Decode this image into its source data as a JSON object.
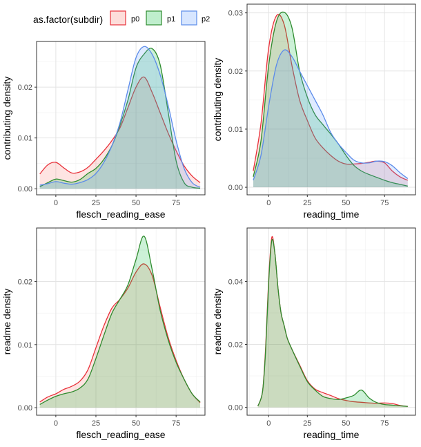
{
  "legend": {
    "title": "as.factor(subdir)",
    "items": [
      {
        "label": "p0",
        "stroke": "#E8313A",
        "fill": "#F8766D"
      },
      {
        "label": "p1",
        "stroke": "#2E8B2E",
        "fill": "#00BA38"
      },
      {
        "label": "p2",
        "stroke": "#5B8BEA",
        "fill": "#619CFF"
      }
    ],
    "placement": "top-left"
  },
  "chart_data": [
    {
      "type": "area",
      "xlabel": "flesch_reading_ease",
      "ylabel": "contributing density",
      "xlim": [
        -12,
        93
      ],
      "ylim": [
        -0.0012,
        0.029
      ],
      "xticks": [
        0,
        25,
        50,
        75
      ],
      "yticks": [
        0.0,
        0.01,
        0.02
      ],
      "ytick_labels": [
        "0.00",
        "0.01",
        "0.02"
      ],
      "grid": true,
      "series": [
        {
          "name": "p0",
          "x": [
            -10,
            -5,
            0,
            5,
            10,
            15,
            20,
            25,
            30,
            35,
            40,
            45,
            50,
            55,
            60,
            65,
            70,
            75,
            80,
            85,
            90
          ],
          "y": [
            0.0029,
            0.0047,
            0.0052,
            0.0041,
            0.0031,
            0.0033,
            0.0042,
            0.0058,
            0.0075,
            0.0095,
            0.012,
            0.016,
            0.02,
            0.022,
            0.019,
            0.015,
            0.011,
            0.0075,
            0.0045,
            0.0025,
            0.0012
          ]
        },
        {
          "name": "p1",
          "x": [
            -10,
            -5,
            0,
            5,
            10,
            15,
            20,
            25,
            30,
            35,
            40,
            45,
            50,
            55,
            60,
            65,
            70,
            75,
            80,
            85,
            90
          ],
          "y": [
            0.0004,
            0.0012,
            0.0019,
            0.0016,
            0.0013,
            0.0018,
            0.003,
            0.004,
            0.0058,
            0.0085,
            0.0125,
            0.0175,
            0.0238,
            0.0265,
            0.0276,
            0.0245,
            0.0152,
            0.0055,
            0.0012,
            0.0003,
            0.0001
          ]
        },
        {
          "name": "p2",
          "x": [
            -10,
            -5,
            0,
            5,
            10,
            15,
            20,
            25,
            30,
            35,
            40,
            45,
            50,
            55,
            60,
            65,
            70,
            75,
            80,
            85,
            90
          ],
          "y": [
            0.0007,
            0.001,
            0.0014,
            0.0011,
            0.0009,
            0.0012,
            0.0018,
            0.003,
            0.0052,
            0.0085,
            0.013,
            0.0195,
            0.0258,
            0.028,
            0.0265,
            0.0225,
            0.0165,
            0.0095,
            0.004,
            0.0012,
            0.0003
          ]
        }
      ]
    },
    {
      "type": "area",
      "xlabel": "reading_time",
      "ylabel": "contributing density",
      "xlim": [
        -14,
        95
      ],
      "ylim": [
        -0.0013,
        0.0315
      ],
      "xticks": [
        0,
        25,
        50,
        75
      ],
      "yticks": [
        0.0,
        0.01,
        0.02,
        0.03
      ],
      "ytick_labels": [
        "0.00",
        "0.01",
        "0.02",
        "0.03"
      ],
      "grid": true,
      "series": [
        {
          "name": "p0",
          "x": [
            -10,
            -5,
            0,
            5,
            10,
            15,
            20,
            25,
            30,
            35,
            40,
            45,
            50,
            55,
            60,
            65,
            70,
            75,
            80,
            85,
            90
          ],
          "y": [
            0.0028,
            0.011,
            0.024,
            0.0295,
            0.028,
            0.021,
            0.015,
            0.0115,
            0.0085,
            0.0068,
            0.0055,
            0.0045,
            0.004,
            0.004,
            0.0041,
            0.0043,
            0.0045,
            0.0042,
            0.0028,
            0.0018,
            0.0012
          ]
        },
        {
          "name": "p1",
          "x": [
            -10,
            -5,
            0,
            5,
            10,
            15,
            20,
            25,
            30,
            35,
            40,
            45,
            50,
            55,
            60,
            65,
            70,
            75,
            80,
            85,
            90
          ],
          "y": [
            0.0018,
            0.008,
            0.021,
            0.0285,
            0.0301,
            0.0275,
            0.02,
            0.0155,
            0.0125,
            0.0108,
            0.0092,
            0.0075,
            0.0055,
            0.0038,
            0.0028,
            0.0022,
            0.0017,
            0.0012,
            0.0008,
            0.0005,
            0.0002
          ]
        },
        {
          "name": "p2",
          "x": [
            -10,
            -5,
            0,
            5,
            10,
            15,
            20,
            25,
            30,
            35,
            40,
            45,
            50,
            55,
            60,
            65,
            70,
            75,
            80,
            85,
            90
          ],
          "y": [
            0.0012,
            0.0055,
            0.014,
            0.021,
            0.0236,
            0.0225,
            0.02,
            0.0175,
            0.015,
            0.0125,
            0.0095,
            0.0075,
            0.006,
            0.0047,
            0.0042,
            0.0042,
            0.0045,
            0.0044,
            0.0037,
            0.0025,
            0.0015
          ]
        }
      ]
    },
    {
      "type": "area",
      "xlabel": "flesch_reading_ease",
      "ylabel": "readme density",
      "xlim": [
        -12,
        93
      ],
      "ylim": [
        -0.0012,
        0.0285
      ],
      "xticks": [
        0,
        25,
        50,
        75
      ],
      "yticks": [
        0.0,
        0.01,
        0.02
      ],
      "ytick_labels": [
        "0.00",
        "0.01",
        "0.02"
      ],
      "grid": true,
      "series": [
        {
          "name": "p0",
          "x": [
            -10,
            -5,
            0,
            5,
            10,
            15,
            20,
            25,
            30,
            35,
            40,
            45,
            50,
            55,
            60,
            65,
            70,
            75,
            80,
            85,
            90
          ],
          "y": [
            0.0009,
            0.0017,
            0.0022,
            0.0029,
            0.0034,
            0.0042,
            0.006,
            0.0095,
            0.013,
            0.0158,
            0.0172,
            0.019,
            0.0215,
            0.0228,
            0.021,
            0.016,
            0.0112,
            0.0075,
            0.0045,
            0.0022,
            0.0008
          ]
        },
        {
          "name": "p1",
          "x": [
            -10,
            -5,
            0,
            5,
            10,
            15,
            20,
            25,
            30,
            35,
            40,
            45,
            50,
            55,
            60,
            65,
            70,
            75,
            80,
            85,
            90
          ],
          "y": [
            0.0005,
            0.0012,
            0.0018,
            0.0022,
            0.0025,
            0.0031,
            0.0045,
            0.0078,
            0.0115,
            0.015,
            0.0172,
            0.0195,
            0.0235,
            0.0272,
            0.022,
            0.0155,
            0.0108,
            0.0072,
            0.0045,
            0.0022,
            0.0009
          ]
        }
      ]
    },
    {
      "type": "area",
      "xlabel": "reading_time",
      "ylabel": "readme density",
      "xlim": [
        -14,
        95
      ],
      "ylim": [
        -0.0025,
        0.057
      ],
      "xticks": [
        0,
        25,
        50,
        75
      ],
      "yticks": [
        0.0,
        0.02,
        0.04
      ],
      "ytick_labels": [
        "0.00",
        "0.02",
        "0.04"
      ],
      "grid": true,
      "series": [
        {
          "name": "p0",
          "x": [
            -7,
            -4,
            -2,
            0,
            2,
            4,
            6,
            8,
            10,
            12,
            15,
            20,
            25,
            30,
            35,
            40,
            45,
            50,
            55,
            60,
            65,
            70,
            75,
            80,
            85,
            90
          ],
          "y": [
            0.0004,
            0.005,
            0.019,
            0.041,
            0.054,
            0.049,
            0.038,
            0.03,
            0.026,
            0.022,
            0.0185,
            0.0135,
            0.0085,
            0.0058,
            0.0047,
            0.0038,
            0.0028,
            0.0022,
            0.0018,
            0.0016,
            0.0014,
            0.0013,
            0.0014,
            0.0012,
            0.0006,
            0.0003
          ]
        },
        {
          "name": "p1",
          "x": [
            -7,
            -4,
            -2,
            0,
            2,
            4,
            6,
            8,
            10,
            12,
            15,
            20,
            25,
            30,
            35,
            40,
            45,
            50,
            55,
            60,
            65,
            70,
            75,
            80,
            85,
            90
          ],
          "y": [
            0.0004,
            0.005,
            0.018,
            0.04,
            0.053,
            0.049,
            0.038,
            0.03,
            0.026,
            0.022,
            0.0185,
            0.0132,
            0.0082,
            0.0055,
            0.0035,
            0.0028,
            0.0025,
            0.003,
            0.0038,
            0.0055,
            0.003,
            0.0015,
            0.0009,
            0.0007,
            0.0005,
            0.0003
          ]
        }
      ]
    }
  ]
}
